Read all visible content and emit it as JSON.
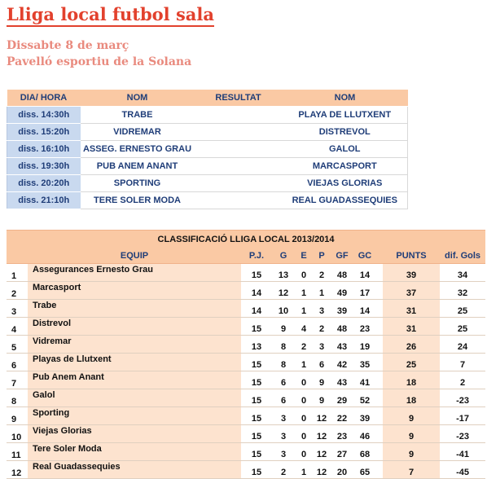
{
  "title": "Lliga local futbol sala",
  "date": "Dissabte 8 de març",
  "venue": "Pavelló esportiu de la Solana",
  "schedule": {
    "headers": [
      "DIA/ HORA",
      "NOM",
      "RESULTAT",
      "NOM"
    ],
    "rows": [
      {
        "time": "diss. 14:30h",
        "home": "TRABE",
        "result": "",
        "away": "PLAYA DE LLUTXENT"
      },
      {
        "time": "diss. 15:20h",
        "home": "VIDREMAR",
        "result": "",
        "away": "DISTREVOL"
      },
      {
        "time": "diss. 16:10h",
        "home": "ASSEG. ERNESTO GRAU",
        "result": "",
        "away": "GALOL"
      },
      {
        "time": "diss. 19:30h",
        "home": "PUB ANEM ANANT",
        "result": "",
        "away": "MARCASPORT"
      },
      {
        "time": "diss. 20:20h",
        "home": "SPORTING",
        "result": "",
        "away": "VIEJAS GLORIAS"
      },
      {
        "time": "diss. 21:10h",
        "home": "TERE SOLER MODA",
        "result": "",
        "away": "REAL GUADASSEQUIES"
      }
    ]
  },
  "standings": {
    "caption": "CLASSIFICACIÓ LLIGA LOCAL 2013/2014",
    "headers": {
      "team": "EQUIP",
      "pj": "P.J.",
      "g": "G",
      "e": "E",
      "p": "P",
      "gf": "GF",
      "gc": "GC",
      "pts": "PUNTS",
      "dif": "dif. Gols"
    },
    "rows": [
      {
        "pos": "1",
        "team": "Assegurances Ernesto Grau",
        "pj": "15",
        "g": "13",
        "e": "0",
        "p": "2",
        "gf": "48",
        "gc": "14",
        "pts": "39",
        "dif": "34"
      },
      {
        "pos": "2",
        "team": "Marcasport",
        "pj": "14",
        "g": "12",
        "e": "1",
        "p": "1",
        "gf": "49",
        "gc": "17",
        "pts": "37",
        "dif": "32"
      },
      {
        "pos": "3",
        "team": "Trabe",
        "pj": "14",
        "g": "10",
        "e": "1",
        "p": "3",
        "gf": "39",
        "gc": "14",
        "pts": "31",
        "dif": "25"
      },
      {
        "pos": "4",
        "team": "Distrevol",
        "pj": "15",
        "g": "9",
        "e": "4",
        "p": "2",
        "gf": "48",
        "gc": "23",
        "pts": "31",
        "dif": "25"
      },
      {
        "pos": "5",
        "team": "Vidremar",
        "pj": "13",
        "g": "8",
        "e": "2",
        "p": "3",
        "gf": "43",
        "gc": "19",
        "pts": "26",
        "dif": "24"
      },
      {
        "pos": "6",
        "team": "Playas de Llutxent",
        "pj": "15",
        "g": "8",
        "e": "1",
        "p": "6",
        "gf": "42",
        "gc": "35",
        "pts": "25",
        "dif": "7"
      },
      {
        "pos": "7",
        "team": "Pub Anem Anant",
        "pj": "15",
        "g": "6",
        "e": "0",
        "p": "9",
        "gf": "43",
        "gc": "41",
        "pts": "18",
        "dif": "2"
      },
      {
        "pos": "8",
        "team": "Galol",
        "pj": "15",
        "g": "6",
        "e": "0",
        "p": "9",
        "gf": "29",
        "gc": "52",
        "pts": "18",
        "dif": "-23"
      },
      {
        "pos": "9",
        "team": "Sporting",
        "pj": "15",
        "g": "3",
        "e": "0",
        "p": "12",
        "gf": "22",
        "gc": "39",
        "pts": "9",
        "dif": "-17"
      },
      {
        "pos": "10",
        "team": "Viejas Glorias",
        "pj": "15",
        "g": "3",
        "e": "0",
        "p": "12",
        "gf": "23",
        "gc": "46",
        "pts": "9",
        "dif": "-23"
      },
      {
        "pos": "11",
        "team": "Tere Soler Moda",
        "pj": "15",
        "g": "3",
        "e": "0",
        "p": "12",
        "gf": "27",
        "gc": "68",
        "pts": "9",
        "dif": "-41"
      },
      {
        "pos": "12",
        "team": "Real Guadassequies",
        "pj": "15",
        "g": "2",
        "e": "1",
        "p": "12",
        "gf": "20",
        "gc": "65",
        "pts": "7",
        "dif": "-45"
      }
    ]
  }
}
